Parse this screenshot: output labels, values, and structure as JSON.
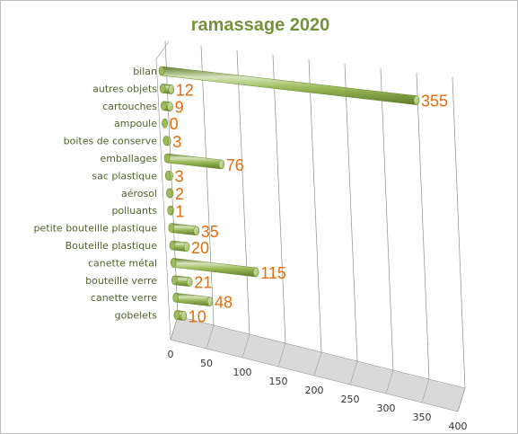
{
  "colors": {
    "title": "#76933C",
    "category_text": "#4F6228",
    "data_label": "#E46C0A",
    "bar_light": "#D7E4BD",
    "bar_mid": "#9BBB59",
    "bar_dark": "#5E7A2A",
    "floor": "#D9D9D9",
    "grid": "#8C8C8C"
  },
  "chart_data": {
    "type": "bar",
    "orientation": "horizontal-3d-cylinder",
    "title": "ramassage 2020",
    "categories": [
      "bilan",
      "autres objets",
      "cartouches",
      "ampoule",
      "boites de conserve",
      "emballages",
      "sac plastique",
      "aérosol",
      "polluants",
      "petite bouteille plastique",
      "Bouteille plastique",
      "canette métal",
      "bouteille verre",
      "canette verre",
      "gobelets"
    ],
    "values": [
      355,
      12,
      9,
      0,
      3,
      76,
      3,
      2,
      1,
      35,
      20,
      115,
      21,
      48,
      10
    ],
    "xlim": [
      0,
      400
    ],
    "xticks": [
      "0",
      "50",
      "100",
      "150",
      "200",
      "250",
      "300",
      "350",
      "400"
    ],
    "data_labels": true,
    "grid": true,
    "legend": "none"
  }
}
